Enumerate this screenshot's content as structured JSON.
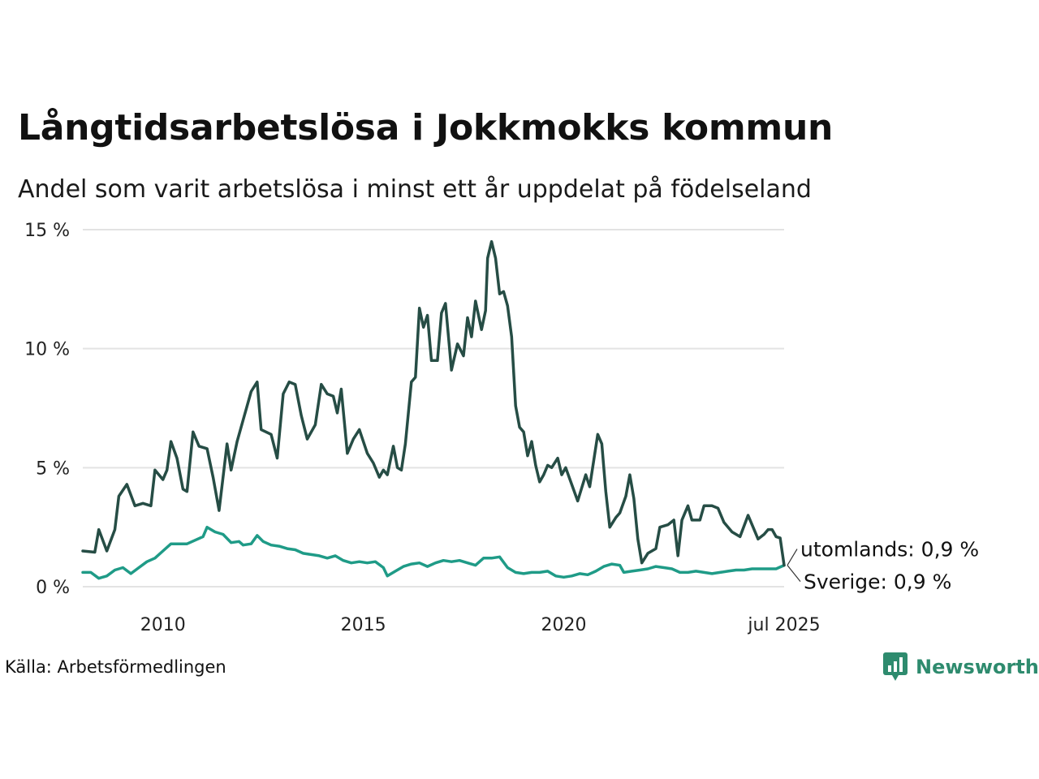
{
  "header": {
    "title": "Långtidsarbetslösa i Jokkmokks kommun",
    "subtitle": "Andel som varit arbetslösa i minst ett år uppdelat på födelseland"
  },
  "footer": {
    "source": "Källa: Arbetsförmedlingen",
    "brand": "Newsworthy"
  },
  "colors": {
    "utomlands": "#264d45",
    "sverige": "#1f9b87",
    "grid": "#e3e3e3",
    "brand": "#2e8b6e"
  },
  "chart_data": {
    "type": "line",
    "title": "Långtidsarbetslösa i Jokkmokks kommun",
    "subtitle": "Andel som varit arbetslösa i minst ett år uppdelat på födelseland",
    "xlim": [
      2008.0,
      2025.5
    ],
    "ylim": [
      0,
      15
    ],
    "y_ticks": [
      0,
      5,
      10,
      15
    ],
    "y_tick_labels": [
      "0 %",
      "5 %",
      "10 %",
      "15 %"
    ],
    "x_ticks": [
      2010,
      2015,
      2020,
      2025.5
    ],
    "x_tick_labels": [
      "2010",
      "2015",
      "2020",
      "jul 2025"
    ],
    "grid": true,
    "legend": "end-of-line labels",
    "series": [
      {
        "name": "utomlands",
        "end_label": "utomlands: 0,9 %",
        "points": [
          [
            2008.0,
            1.5
          ],
          [
            2008.3,
            1.45
          ],
          [
            2008.4,
            2.4
          ],
          [
            2008.6,
            1.5
          ],
          [
            2008.8,
            2.4
          ],
          [
            2008.9,
            3.8
          ],
          [
            2009.1,
            4.3
          ],
          [
            2009.3,
            3.4
          ],
          [
            2009.5,
            3.5
          ],
          [
            2009.7,
            3.4
          ],
          [
            2009.8,
            4.9
          ],
          [
            2010.0,
            4.5
          ],
          [
            2010.1,
            4.9
          ],
          [
            2010.2,
            6.1
          ],
          [
            2010.35,
            5.4
          ],
          [
            2010.5,
            4.1
          ],
          [
            2010.6,
            4.0
          ],
          [
            2010.75,
            6.5
          ],
          [
            2010.9,
            5.9
          ],
          [
            2011.1,
            5.8
          ],
          [
            2011.25,
            4.6
          ],
          [
            2011.4,
            3.2
          ],
          [
            2011.6,
            6.0
          ],
          [
            2011.7,
            4.9
          ],
          [
            2011.85,
            6.1
          ],
          [
            2012.0,
            7.0
          ],
          [
            2012.2,
            8.2
          ],
          [
            2012.35,
            8.6
          ],
          [
            2012.45,
            6.6
          ],
          [
            2012.7,
            6.4
          ],
          [
            2012.85,
            5.4
          ],
          [
            2013.0,
            8.1
          ],
          [
            2013.15,
            8.6
          ],
          [
            2013.3,
            8.5
          ],
          [
            2013.45,
            7.2
          ],
          [
            2013.6,
            6.2
          ],
          [
            2013.8,
            6.8
          ],
          [
            2013.95,
            8.5
          ],
          [
            2014.1,
            8.1
          ],
          [
            2014.25,
            8.0
          ],
          [
            2014.35,
            7.3
          ],
          [
            2014.45,
            8.3
          ],
          [
            2014.6,
            5.6
          ],
          [
            2014.75,
            6.2
          ],
          [
            2014.9,
            6.6
          ],
          [
            2015.1,
            5.6
          ],
          [
            2015.25,
            5.2
          ],
          [
            2015.4,
            4.6
          ],
          [
            2015.5,
            4.9
          ],
          [
            2015.6,
            4.7
          ],
          [
            2015.75,
            5.9
          ],
          [
            2015.85,
            5.0
          ],
          [
            2015.95,
            4.9
          ],
          [
            2016.05,
            6.0
          ],
          [
            2016.2,
            8.6
          ],
          [
            2016.3,
            8.8
          ],
          [
            2016.4,
            11.7
          ],
          [
            2016.5,
            10.9
          ],
          [
            2016.6,
            11.4
          ],
          [
            2016.7,
            9.5
          ],
          [
            2016.85,
            9.5
          ],
          [
            2016.95,
            11.5
          ],
          [
            2017.05,
            11.9
          ],
          [
            2017.2,
            9.1
          ],
          [
            2017.35,
            10.2
          ],
          [
            2017.5,
            9.7
          ],
          [
            2017.6,
            11.3
          ],
          [
            2017.7,
            10.5
          ],
          [
            2017.8,
            12.0
          ],
          [
            2017.95,
            10.8
          ],
          [
            2018.05,
            11.6
          ],
          [
            2018.1,
            13.8
          ],
          [
            2018.2,
            14.5
          ],
          [
            2018.3,
            13.8
          ],
          [
            2018.4,
            12.3
          ],
          [
            2018.5,
            12.4
          ],
          [
            2018.6,
            11.8
          ],
          [
            2018.7,
            10.5
          ],
          [
            2018.8,
            7.6
          ],
          [
            2018.9,
            6.7
          ],
          [
            2019.0,
            6.5
          ],
          [
            2019.1,
            5.5
          ],
          [
            2019.2,
            6.1
          ],
          [
            2019.3,
            5.1
          ],
          [
            2019.4,
            4.4
          ],
          [
            2019.5,
            4.7
          ],
          [
            2019.6,
            5.1
          ],
          [
            2019.7,
            5.0
          ],
          [
            2019.85,
            5.4
          ],
          [
            2019.95,
            4.7
          ],
          [
            2020.05,
            5.0
          ],
          [
            2020.2,
            4.3
          ],
          [
            2020.35,
            3.6
          ],
          [
            2020.55,
            4.7
          ],
          [
            2020.65,
            4.2
          ],
          [
            2020.85,
            6.4
          ],
          [
            2020.95,
            6.0
          ],
          [
            2021.05,
            4.0
          ],
          [
            2021.15,
            2.5
          ],
          [
            2021.3,
            2.9
          ],
          [
            2021.4,
            3.1
          ],
          [
            2021.55,
            3.8
          ],
          [
            2021.65,
            4.7
          ],
          [
            2021.75,
            3.7
          ],
          [
            2021.85,
            2.0
          ],
          [
            2021.95,
            1.0
          ],
          [
            2022.1,
            1.4
          ],
          [
            2022.3,
            1.6
          ],
          [
            2022.4,
            2.5
          ],
          [
            2022.6,
            2.6
          ],
          [
            2022.75,
            2.8
          ],
          [
            2022.85,
            1.3
          ],
          [
            2022.95,
            2.8
          ],
          [
            2023.1,
            3.4
          ],
          [
            2023.2,
            2.8
          ],
          [
            2023.4,
            2.8
          ],
          [
            2023.5,
            3.4
          ],
          [
            2023.7,
            3.4
          ],
          [
            2023.85,
            3.3
          ],
          [
            2024.0,
            2.7
          ],
          [
            2024.2,
            2.3
          ],
          [
            2024.4,
            2.1
          ],
          [
            2024.6,
            3.0
          ],
          [
            2024.75,
            2.4
          ],
          [
            2024.85,
            2.0
          ],
          [
            2025.0,
            2.2
          ],
          [
            2025.1,
            2.4
          ],
          [
            2025.2,
            2.4
          ],
          [
            2025.3,
            2.1
          ],
          [
            2025.4,
            2.05
          ],
          [
            2025.5,
            0.9
          ]
        ]
      },
      {
        "name": "Sverige",
        "end_label": "Sverige: 0,9 %",
        "points": [
          [
            2008.0,
            0.6
          ],
          [
            2008.2,
            0.6
          ],
          [
            2008.4,
            0.35
          ],
          [
            2008.6,
            0.45
          ],
          [
            2008.8,
            0.7
          ],
          [
            2009.0,
            0.8
          ],
          [
            2009.2,
            0.55
          ],
          [
            2009.4,
            0.8
          ],
          [
            2009.6,
            1.05
          ],
          [
            2009.8,
            1.2
          ],
          [
            2010.0,
            1.5
          ],
          [
            2010.2,
            1.8
          ],
          [
            2010.4,
            1.8
          ],
          [
            2010.6,
            1.8
          ],
          [
            2010.8,
            1.95
          ],
          [
            2011.0,
            2.1
          ],
          [
            2011.1,
            2.5
          ],
          [
            2011.3,
            2.3
          ],
          [
            2011.5,
            2.2
          ],
          [
            2011.7,
            1.85
          ],
          [
            2011.9,
            1.9
          ],
          [
            2012.0,
            1.75
          ],
          [
            2012.2,
            1.8
          ],
          [
            2012.35,
            2.15
          ],
          [
            2012.5,
            1.9
          ],
          [
            2012.7,
            1.75
          ],
          [
            2012.9,
            1.7
          ],
          [
            2013.1,
            1.6
          ],
          [
            2013.3,
            1.55
          ],
          [
            2013.5,
            1.4
          ],
          [
            2013.7,
            1.35
          ],
          [
            2013.9,
            1.3
          ],
          [
            2014.1,
            1.2
          ],
          [
            2014.3,
            1.3
          ],
          [
            2014.5,
            1.1
          ],
          [
            2014.7,
            1.0
          ],
          [
            2014.9,
            1.05
          ],
          [
            2015.1,
            1.0
          ],
          [
            2015.3,
            1.05
          ],
          [
            2015.5,
            0.8
          ],
          [
            2015.6,
            0.45
          ],
          [
            2015.8,
            0.65
          ],
          [
            2016.0,
            0.85
          ],
          [
            2016.2,
            0.95
          ],
          [
            2016.4,
            1.0
          ],
          [
            2016.6,
            0.85
          ],
          [
            2016.8,
            1.0
          ],
          [
            2017.0,
            1.1
          ],
          [
            2017.2,
            1.05
          ],
          [
            2017.4,
            1.1
          ],
          [
            2017.6,
            1.0
          ],
          [
            2017.8,
            0.9
          ],
          [
            2018.0,
            1.2
          ],
          [
            2018.2,
            1.2
          ],
          [
            2018.4,
            1.25
          ],
          [
            2018.6,
            0.8
          ],
          [
            2018.8,
            0.6
          ],
          [
            2019.0,
            0.55
          ],
          [
            2019.2,
            0.6
          ],
          [
            2019.4,
            0.6
          ],
          [
            2019.6,
            0.65
          ],
          [
            2019.8,
            0.45
          ],
          [
            2020.0,
            0.4
          ],
          [
            2020.2,
            0.45
          ],
          [
            2020.4,
            0.55
          ],
          [
            2020.6,
            0.5
          ],
          [
            2020.8,
            0.65
          ],
          [
            2021.0,
            0.85
          ],
          [
            2021.2,
            0.95
          ],
          [
            2021.4,
            0.9
          ],
          [
            2021.5,
            0.6
          ],
          [
            2021.7,
            0.65
          ],
          [
            2021.9,
            0.7
          ],
          [
            2022.1,
            0.75
          ],
          [
            2022.3,
            0.85
          ],
          [
            2022.5,
            0.8
          ],
          [
            2022.7,
            0.75
          ],
          [
            2022.9,
            0.6
          ],
          [
            2023.1,
            0.6
          ],
          [
            2023.3,
            0.65
          ],
          [
            2023.5,
            0.6
          ],
          [
            2023.7,
            0.55
          ],
          [
            2023.9,
            0.6
          ],
          [
            2024.1,
            0.65
          ],
          [
            2024.3,
            0.7
          ],
          [
            2024.5,
            0.7
          ],
          [
            2024.7,
            0.75
          ],
          [
            2024.9,
            0.75
          ],
          [
            2025.1,
            0.75
          ],
          [
            2025.3,
            0.75
          ],
          [
            2025.5,
            0.9
          ]
        ]
      }
    ]
  }
}
